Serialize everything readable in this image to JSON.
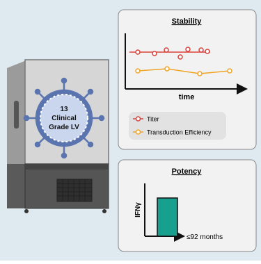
{
  "freezer": {
    "label": [
      "13",
      "Clinical",
      "Grade LV"
    ]
  },
  "stability": {
    "title": "Stability",
    "x_label": "time",
    "legend": [
      "Titer",
      "Transduction Efficiency"
    ]
  },
  "potency": {
    "title": "Potency",
    "y_label": "IFNγ",
    "x_label": "≤92 months"
  }
}
